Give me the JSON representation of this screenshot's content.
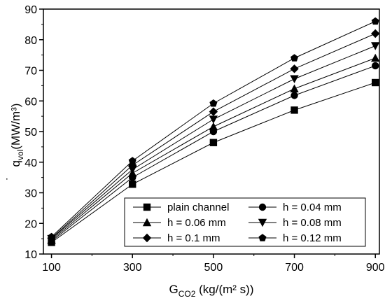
{
  "chart_data": {
    "type": "line",
    "x_label_main": "G",
    "x_label_sub": "CO2",
    "x_label_unit": " (kg/(m² s))",
    "y_label_main": "q",
    "y_label_sub": "vol",
    "y_label_unit": "(MW/m³)",
    "y_label_dot": "˙",
    "x": [
      100,
      300,
      500,
      700,
      900
    ],
    "xlim": [
      80,
      910
    ],
    "ylim": [
      10,
      90
    ],
    "xticks": [
      100,
      300,
      500,
      700,
      900
    ],
    "yticks": [
      10,
      20,
      30,
      40,
      50,
      60,
      70,
      80,
      90
    ],
    "legend_placement": "bottom-right",
    "series": [
      {
        "name": "plain channel",
        "marker": "square",
        "values": [
          13.8,
          32.8,
          46.4,
          57.0,
          66.0
        ]
      },
      {
        "name": "h = 0.04 mm",
        "marker": "circle",
        "values": [
          14.2,
          35.0,
          50.0,
          61.8,
          71.5
        ]
      },
      {
        "name": "h = 0.06 mm",
        "marker": "triangle-up",
        "values": [
          14.6,
          36.4,
          51.6,
          64.0,
          74.0
        ]
      },
      {
        "name": "h = 0.08 mm",
        "marker": "triangle-down",
        "values": [
          15.0,
          37.6,
          54.0,
          67.2,
          78.0
        ]
      },
      {
        "name": "h = 0.1 mm",
        "marker": "diamond",
        "values": [
          15.2,
          39.0,
          56.5,
          70.5,
          82.0
        ]
      },
      {
        "name": "h = 0.12 mm",
        "marker": "pentagon",
        "values": [
          15.6,
          40.4,
          59.2,
          74.0,
          86.0
        ]
      }
    ]
  }
}
